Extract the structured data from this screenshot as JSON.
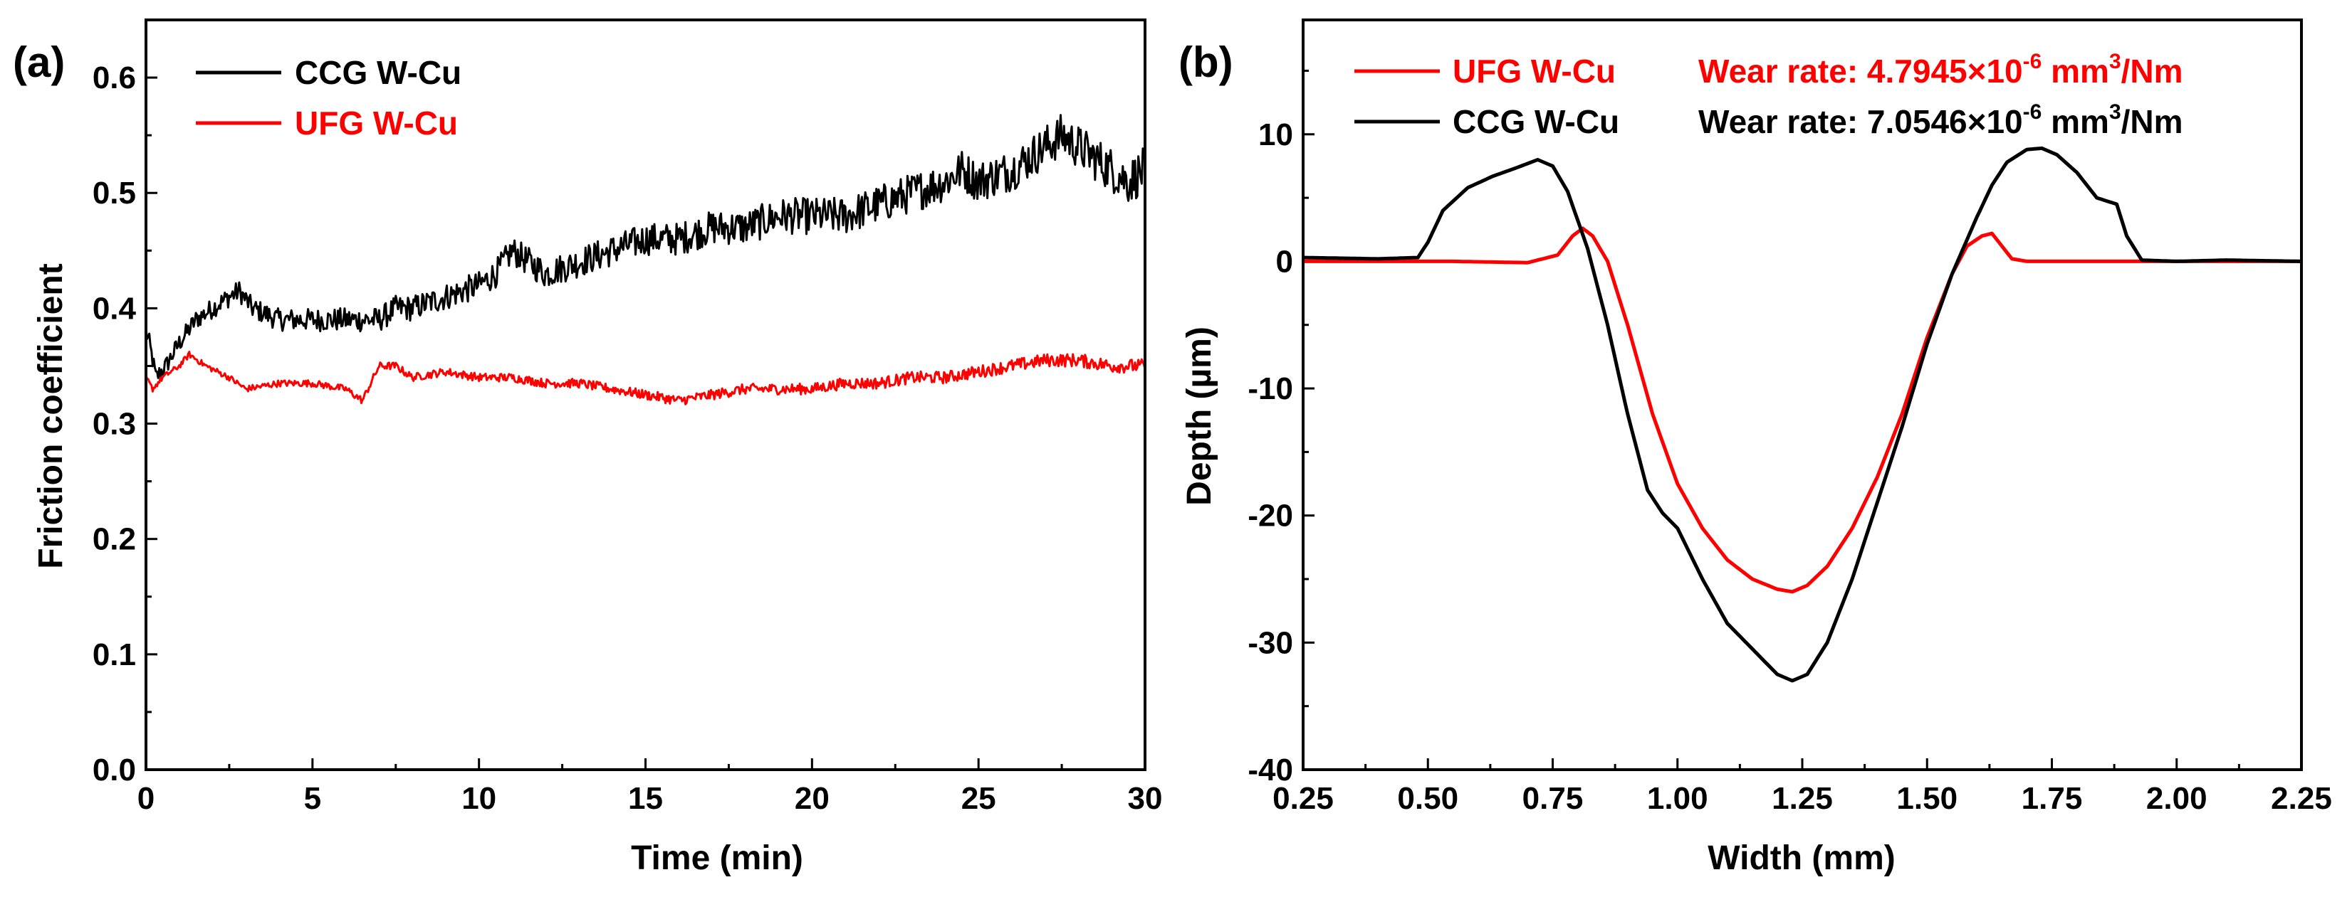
{
  "colors": {
    "ccg": "#000000",
    "ufg": "#ff0000",
    "axis": "#000000"
  },
  "chart_data": [
    {
      "panel_label": "(a)",
      "type": "line",
      "xlabel": "Time (min)",
      "ylabel": "Friction coefficient",
      "xlim": [
        0,
        30
      ],
      "ylim": [
        0.0,
        0.65
      ],
      "xticks": [
        0,
        5,
        10,
        15,
        20,
        25,
        30
      ],
      "xtick_labels": [
        "0",
        "5",
        "10",
        "15",
        "20",
        "25",
        "30"
      ],
      "yticks": [
        0.0,
        0.1,
        0.2,
        0.3,
        0.4,
        0.5,
        0.6
      ],
      "ytick_labels": [
        "0.0",
        "0.1",
        "0.2",
        "0.3",
        "0.4",
        "0.5",
        "0.6"
      ],
      "legend_position": "top-left",
      "series": [
        {
          "name": "CCG W-Cu",
          "color_key": "ccg",
          "noise_amplitude": 0.02,
          "x": [
            0,
            0.1,
            0.3,
            0.6,
            1,
            1.5,
            2,
            2.5,
            2.8,
            3.2,
            4,
            5,
            6,
            7,
            7.5,
            8,
            9,
            10,
            10.5,
            11,
            11.5,
            12,
            13,
            14,
            15,
            16,
            17,
            18,
            19,
            20,
            21,
            22,
            23,
            24,
            24.5,
            25,
            26,
            26.5,
            27,
            27.5,
            28,
            28.5,
            29,
            29.5,
            30
          ],
          "y": [
            0.38,
            0.37,
            0.34,
            0.35,
            0.37,
            0.39,
            0.4,
            0.41,
            0.415,
            0.4,
            0.39,
            0.39,
            0.39,
            0.39,
            0.4,
            0.4,
            0.41,
            0.42,
            0.43,
            0.45,
            0.44,
            0.43,
            0.44,
            0.45,
            0.46,
            0.46,
            0.47,
            0.47,
            0.48,
            0.48,
            0.48,
            0.49,
            0.5,
            0.51,
            0.52,
            0.51,
            0.52,
            0.53,
            0.54,
            0.55,
            0.54,
            0.53,
            0.52,
            0.51,
            0.52
          ]
        },
        {
          "name": "UFG W-Cu",
          "color_key": "ufg",
          "noise_amplitude": 0.006,
          "x": [
            0,
            0.2,
            0.5,
            1,
            1.3,
            1.8,
            2.5,
            3,
            4,
            5,
            6,
            6.5,
            7,
            7.5,
            8,
            9,
            10,
            11,
            12,
            13,
            14,
            15,
            16,
            17,
            18,
            19,
            20,
            21,
            22,
            23,
            24,
            25,
            26,
            27,
            28,
            29,
            30
          ],
          "y": [
            0.34,
            0.33,
            0.34,
            0.35,
            0.36,
            0.35,
            0.34,
            0.33,
            0.335,
            0.335,
            0.33,
            0.32,
            0.35,
            0.35,
            0.34,
            0.345,
            0.34,
            0.34,
            0.335,
            0.335,
            0.33,
            0.325,
            0.32,
            0.325,
            0.33,
            0.33,
            0.33,
            0.335,
            0.335,
            0.34,
            0.34,
            0.345,
            0.35,
            0.355,
            0.355,
            0.35,
            0.35
          ]
        }
      ]
    },
    {
      "panel_label": "(b)",
      "type": "line",
      "xlabel": "Width (mm)",
      "ylabel": "Depth (µm)",
      "xlim": [
        0.25,
        2.25
      ],
      "ylim": [
        -40,
        19
      ],
      "xticks": [
        0.25,
        0.5,
        0.75,
        1.0,
        1.25,
        1.5,
        1.75,
        2.0,
        2.25
      ],
      "xtick_labels": [
        "0.25",
        "0.50",
        "0.75",
        "1.00",
        "1.25",
        "1.50",
        "1.75",
        "2.00",
        "2.25"
      ],
      "yticks": [
        -40,
        -30,
        -20,
        -10,
        0,
        10
      ],
      "ytick_labels": [
        "-40",
        "-30",
        "-20",
        "-10",
        "0",
        "10"
      ],
      "legend_position": "top",
      "series": [
        {
          "name": "UFG W-Cu",
          "color_key": "ufg",
          "wear_rate_prefix": "Wear rate: 4.7945×10",
          "wear_rate_exp": "-6",
          "wear_rate_unit1": " mm",
          "wear_rate_unit_exp": "3",
          "wear_rate_unit2": "/Nm",
          "x": [
            0.25,
            0.4,
            0.55,
            0.7,
            0.76,
            0.79,
            0.81,
            0.83,
            0.86,
            0.9,
            0.95,
            1.0,
            1.05,
            1.1,
            1.15,
            1.2,
            1.23,
            1.26,
            1.3,
            1.35,
            1.4,
            1.45,
            1.5,
            1.55,
            1.58,
            1.61,
            1.63,
            1.65,
            1.67,
            1.7,
            1.8,
            2.0,
            2.25
          ],
          "y": [
            0.0,
            0.0,
            0.0,
            -0.1,
            0.5,
            2.0,
            2.6,
            2.0,
            0.0,
            -5.0,
            -12.0,
            -17.5,
            -21.0,
            -23.5,
            -25.0,
            -25.8,
            -26.0,
            -25.5,
            -24.0,
            -21.0,
            -17.0,
            -12.0,
            -6.0,
            -1.0,
            1.2,
            2.0,
            2.2,
            1.2,
            0.2,
            0.0,
            0.0,
            0.0,
            0.0
          ]
        },
        {
          "name": "CCG W-Cu",
          "color_key": "ccg",
          "wear_rate_prefix": "Wear rate: 7.0546×10",
          "wear_rate_exp": "-6",
          "wear_rate_unit1": " mm",
          "wear_rate_unit_exp": "3",
          "wear_rate_unit2": "/Nm",
          "x": [
            0.25,
            0.4,
            0.48,
            0.5,
            0.53,
            0.58,
            0.63,
            0.68,
            0.72,
            0.75,
            0.78,
            0.82,
            0.86,
            0.9,
            0.94,
            0.97,
            1.0,
            1.05,
            1.1,
            1.15,
            1.2,
            1.23,
            1.26,
            1.3,
            1.35,
            1.4,
            1.45,
            1.5,
            1.55,
            1.6,
            1.63,
            1.66,
            1.7,
            1.73,
            1.76,
            1.8,
            1.84,
            1.88,
            1.9,
            1.93,
            2.0,
            2.1,
            2.25
          ],
          "y": [
            0.3,
            0.2,
            0.3,
            1.5,
            4.0,
            5.8,
            6.7,
            7.4,
            8.0,
            7.5,
            5.5,
            1.0,
            -5.0,
            -12.0,
            -18.0,
            -19.8,
            -21.0,
            -25.0,
            -28.5,
            -30.5,
            -32.5,
            -33.0,
            -32.5,
            -30.0,
            -25.0,
            -19.0,
            -13.0,
            -6.5,
            -1.0,
            3.5,
            6.0,
            7.8,
            8.8,
            8.9,
            8.4,
            7.0,
            5.0,
            4.5,
            2.0,
            0.1,
            0.0,
            0.1,
            0.0
          ]
        }
      ]
    }
  ]
}
